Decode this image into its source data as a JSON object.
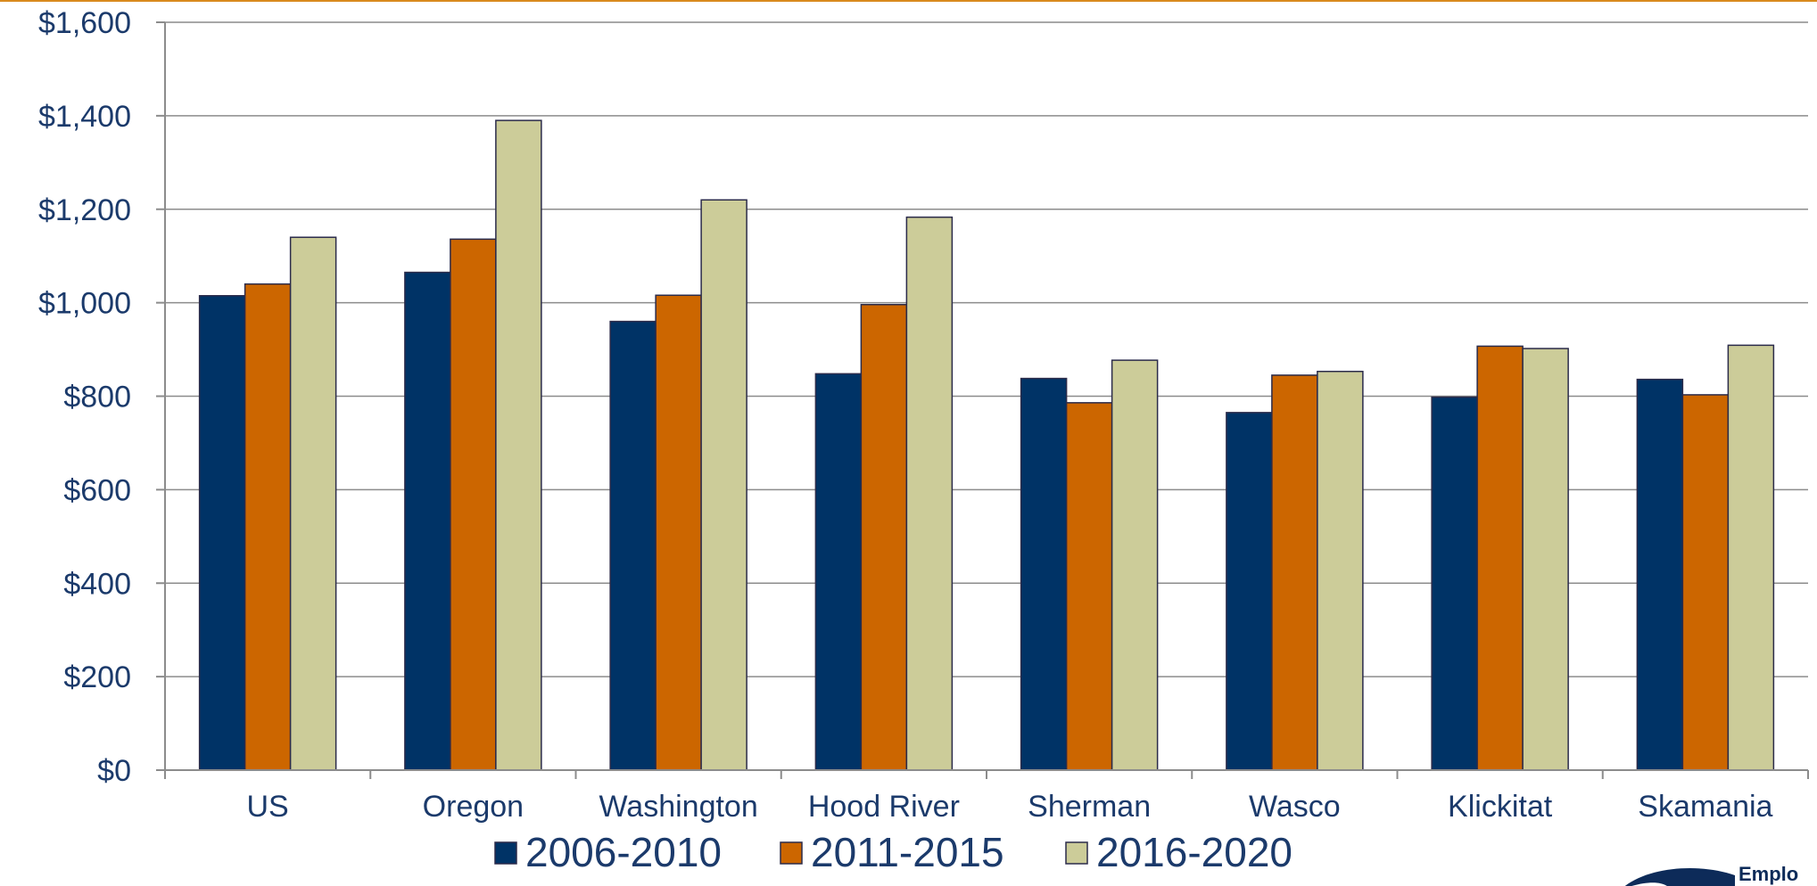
{
  "chart_data": {
    "type": "bar",
    "title": "",
    "xlabel": "",
    "ylabel": "",
    "ylim": [
      0,
      1600
    ],
    "yticks": [
      0,
      200,
      400,
      600,
      800,
      1000,
      1200,
      1400,
      1600
    ],
    "ytick_labels": [
      "$0",
      "$200",
      "$400",
      "$600",
      "$800",
      "$1,000",
      "$1,200",
      "$1,400",
      "$1,600"
    ],
    "categories": [
      "US",
      "Oregon",
      "Washington",
      "Hood River",
      "Sherman",
      "Wasco",
      "Klickitat",
      "Skamania"
    ],
    "series": [
      {
        "name": "2006-2010",
        "color": "#003366",
        "values": [
          1015,
          1065,
          960,
          848,
          838,
          765,
          798,
          836
        ]
      },
      {
        "name": "2011-2015",
        "color": "#cc6600",
        "values": [
          1040,
          1136,
          1016,
          996,
          786,
          845,
          907,
          803
        ]
      },
      {
        "name": "2016-2020",
        "color": "#cccc99",
        "values": [
          1140,
          1390,
          1220,
          1183,
          877,
          853,
          902,
          909
        ]
      }
    ],
    "grid": true,
    "legend": "bottom"
  },
  "logo": {
    "text": "Emplo"
  }
}
